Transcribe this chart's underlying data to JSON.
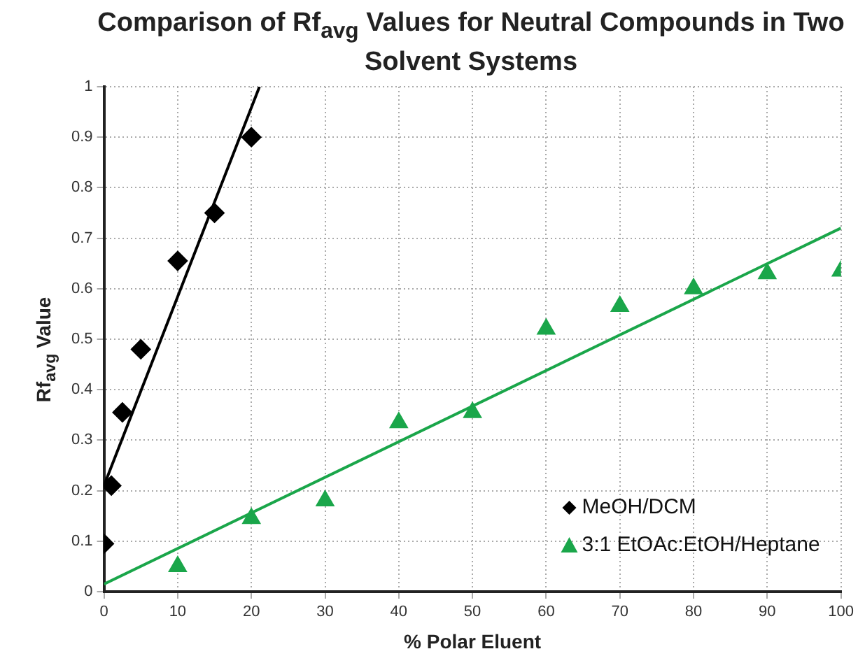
{
  "chart_data": {
    "type": "scatter",
    "title": "Comparison of Rf$_{avg}$ Values for Neutral Compounds in Two Solvent Systems",
    "xlabel": "% Polar Eluent",
    "ylabel": "Rf$_{avg}$ Value",
    "xlim": [
      0,
      100
    ],
    "xticks": [
      0,
      10,
      20,
      30,
      40,
      50,
      60,
      70,
      80,
      90,
      100
    ],
    "ylim": [
      0,
      1
    ],
    "yticks": [
      0,
      0.1,
      0.2,
      0.3,
      0.4,
      0.5,
      0.6,
      0.7,
      0.8,
      0.9,
      1
    ],
    "grid": true,
    "legend": "bottom right",
    "series": [
      {
        "name": "MeOH/DCM",
        "color": "#000000",
        "marker": "diamond",
        "x": [
          0,
          1,
          2.5,
          5,
          10,
          15,
          20
        ],
        "values": [
          0.095,
          0.21,
          0.355,
          0.48,
          0.655,
          0.75,
          0.9
        ]
      },
      {
        "name": "3:1 EtOAc:EtOH/Heptane",
        "color": "#1aa64a",
        "marker": "triangle",
        "x": [
          10,
          20,
          30,
          40,
          50,
          60,
          70,
          80,
          90,
          100
        ],
        "values": [
          0.05,
          0.145,
          0.18,
          0.335,
          0.355,
          0.52,
          0.565,
          0.6,
          0.63,
          0.635
        ]
      },
      {
        "type": "line",
        "color": "#000000",
        "marker": "none",
        "x": [
          0,
          21.1
        ],
        "values": [
          0.21,
          1
        ]
      },
      {
        "type": "line",
        "color": "#1aa64a",
        "marker": "none",
        "x": [
          0,
          100
        ],
        "values": [
          0.015,
          0.72
        ]
      }
    ]
  }
}
